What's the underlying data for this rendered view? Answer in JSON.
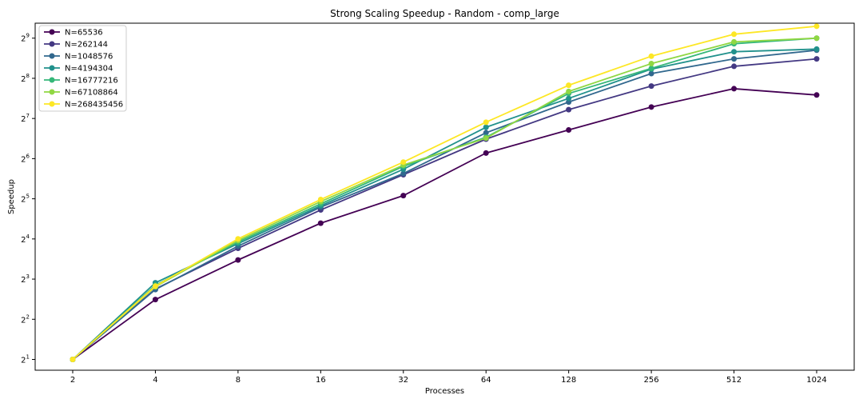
{
  "chart_data": {
    "type": "line",
    "title": "Strong Scaling Speedup - Random - comp_large",
    "xlabel": "Processes",
    "ylabel": "Speedup",
    "x_scale": "log2",
    "y_scale": "log2",
    "x_categories": [
      "2",
      "4",
      "8",
      "16",
      "32",
      "64",
      "128",
      "256",
      "512",
      "1024"
    ],
    "y_ticks": [
      {
        "value": 2,
        "base": "2",
        "exp": "1"
      },
      {
        "value": 4,
        "base": "2",
        "exp": "2"
      },
      {
        "value": 8,
        "base": "2",
        "exp": "3"
      },
      {
        "value": 16,
        "base": "2",
        "exp": "4"
      },
      {
        "value": 32,
        "base": "2",
        "exp": "5"
      },
      {
        "value": 64,
        "base": "2",
        "exp": "6"
      },
      {
        "value": 128,
        "base": "2",
        "exp": "7"
      },
      {
        "value": 256,
        "base": "2",
        "exp": "8"
      },
      {
        "value": 512,
        "base": "2",
        "exp": "9"
      }
    ],
    "ylim": [
      1.66,
      663
    ],
    "grid": false,
    "legend_position": "top-left",
    "series": [
      {
        "name": "N=65536",
        "color": "#440154",
        "values": [
          2.0,
          5.62,
          11.13,
          21.0,
          33.8,
          70.5,
          105,
          156,
          214,
          192
        ]
      },
      {
        "name": "N=262144",
        "color": "#443983",
        "values": [
          2.0,
          6.74,
          13.61,
          26.4,
          48.5,
          89.6,
          149,
          224,
          315,
          358
        ]
      },
      {
        "name": "N=1048576",
        "color": "#31688e",
        "values": [
          2.0,
          6.68,
          14.13,
          27.7,
          49.5,
          100,
          170,
          278,
          358,
          416
        ]
      },
      {
        "name": "N=4194304",
        "color": "#21918c",
        "values": [
          2.0,
          7.51,
          14.75,
          28.4,
          53.3,
          110,
          181,
          300,
          405,
          424
        ]
      },
      {
        "name": "N=16777216",
        "color": "#35b779",
        "values": [
          2.0,
          7.19,
          15.16,
          29.3,
          56.0,
          92.6,
          197,
          304,
          465,
          512
        ]
      },
      {
        "name": "N=67108864",
        "color": "#90d743",
        "values": [
          2.0,
          7.01,
          15.58,
          30.5,
          57.3,
          91.1,
          204,
          330,
          480,
          512
        ]
      },
      {
        "name": "N=268435456",
        "color": "#fde725",
        "values": [
          2.0,
          7.09,
          16.02,
          31.6,
          60.3,
          120,
          227,
          375,
          548,
          629
        ]
      }
    ]
  }
}
